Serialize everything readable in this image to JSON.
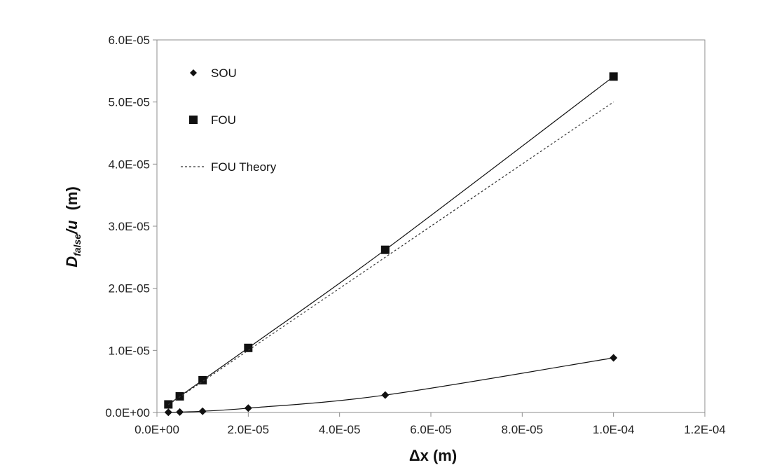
{
  "chart_data": {
    "type": "line",
    "title": "",
    "xlabel": "Δx (m)",
    "ylabel": {
      "main": "D",
      "sub": "false",
      "rest": "/u",
      "unit": "(m)"
    },
    "xlim": [
      0,
      0.00012
    ],
    "ylim": [
      0,
      6e-05
    ],
    "x_ticks": [
      0,
      2e-05,
      4e-05,
      6e-05,
      8e-05,
      0.0001,
      0.00012
    ],
    "x_tick_labels": [
      "0.0E+00",
      "2.0E-05",
      "4.0E-05",
      "6.0E-05",
      "8.0E-05",
      "1.0E-04",
      "1.2E-04"
    ],
    "y_ticks": [
      0,
      1e-05,
      2e-05,
      3e-05,
      4e-05,
      5e-05,
      6e-05
    ],
    "y_tick_labels": [
      "0.0E+00",
      "1.0E-05",
      "2.0E-05",
      "3.0E-05",
      "4.0E-05",
      "5.0E-05",
      "6.0E-05"
    ],
    "grid": false,
    "legend_position": "top-left",
    "series": [
      {
        "name": "SOU",
        "marker": "diamond",
        "line": "solid",
        "x": [
          2.5e-06,
          5e-06,
          1e-05,
          2e-05,
          5e-05,
          0.0001
        ],
        "y": [
          3e-08,
          7e-08,
          2e-07,
          7e-07,
          2.8e-06,
          8.8e-06
        ]
      },
      {
        "name": "FOU",
        "marker": "square",
        "line": "solid",
        "x": [
          2.5e-06,
          5e-06,
          1e-05,
          2e-05,
          5e-05,
          0.0001
        ],
        "y": [
          1.3e-06,
          2.6e-06,
          5.2e-06,
          1.04e-05,
          2.62e-05,
          5.41e-05
        ]
      },
      {
        "name": "FOU Theory",
        "marker": "none",
        "line": "dotted",
        "x": [
          2.5e-06,
          0.0001
        ],
        "y": [
          1.25e-06,
          5e-05
        ]
      }
    ],
    "colors": {
      "axis": "#8c8c8c",
      "series": "#111111",
      "theory": "#333333"
    }
  }
}
